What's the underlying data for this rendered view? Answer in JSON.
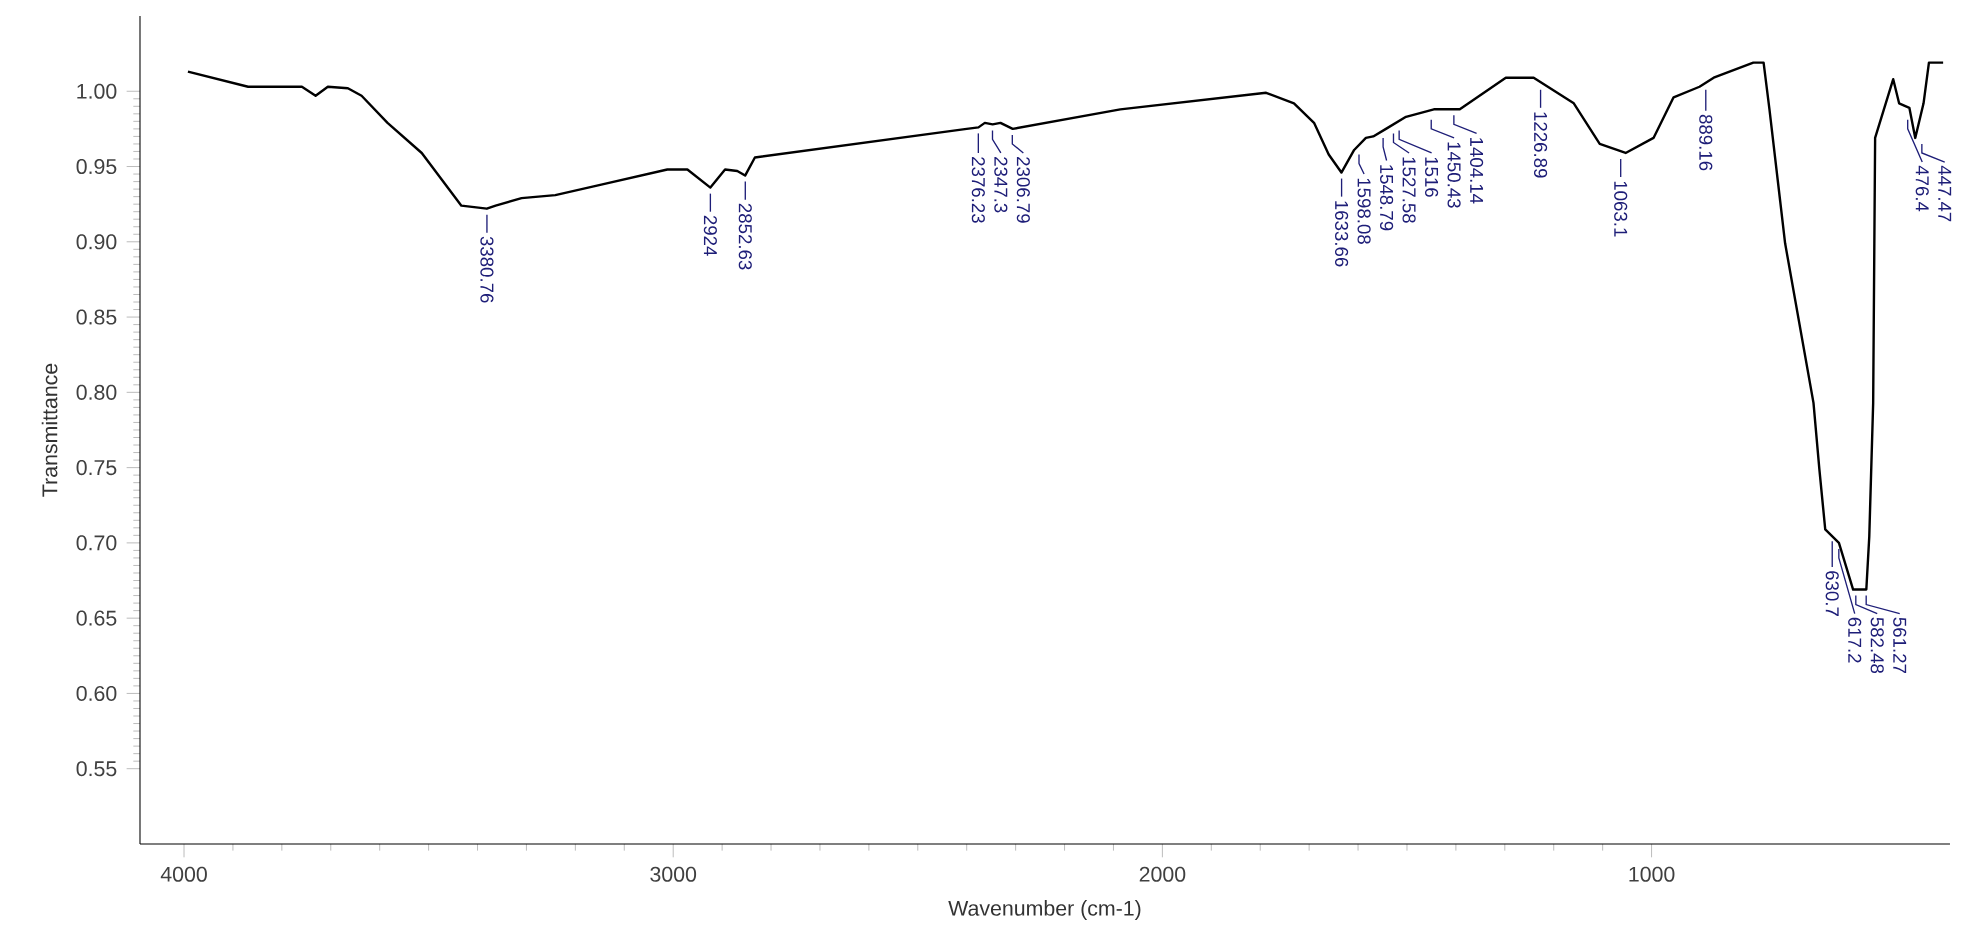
{
  "chart_data": {
    "type": "line",
    "xlabel": "Wavenumber (cm-1)",
    "ylabel": "Transmittance",
    "color": "#000000",
    "xlim": [
      4090,
      390
    ],
    "ylim": [
      0.5,
      1.05
    ],
    "xticks": [
      4000,
      3000,
      2000,
      1000
    ],
    "yticks": [
      {
        "value": 0.55,
        "label": "0.55"
      },
      {
        "value": 0.6,
        "label": "0.60"
      },
      {
        "value": 0.65,
        "label": "0.65"
      },
      {
        "value": 0.7,
        "label": "0.70"
      },
      {
        "value": 0.75,
        "label": "0.75"
      },
      {
        "value": 0.8,
        "label": "0.80"
      },
      {
        "value": 0.85,
        "label": "0.85"
      },
      {
        "value": 0.9,
        "label": "0.90"
      },
      {
        "value": 0.95,
        "label": "0.95"
      },
      {
        "value": 1.0,
        "label": "1.00"
      }
    ],
    "x": [
      3992,
      3869,
      3759,
      3731,
      3706,
      3665,
      3637,
      3584,
      3514,
      3433,
      3381,
      3363,
      3310,
      3241,
      3147,
      3012,
      2971,
      2924,
      2894,
      2869,
      2853,
      2833,
      2400,
      2376,
      2363,
      2347,
      2331,
      2306,
      2086,
      1788,
      1731,
      1690,
      1660,
      1634,
      1608,
      1584,
      1569,
      1543,
      1502,
      1445,
      1392,
      1298,
      1241,
      1159,
      1106,
      1053,
      996,
      955,
      902,
      873,
      792,
      771,
      759,
      727,
      669,
      657,
      645,
      617,
      588,
      561,
      555,
      547,
      543,
      506,
      494,
      473,
      461,
      444,
      433,
      404
    ],
    "values": [
      1.013,
      1.003,
      1.003,
      0.997,
      1.003,
      1.002,
      0.997,
      0.979,
      0.959,
      0.924,
      0.922,
      0.924,
      0.929,
      0.931,
      0.938,
      0.948,
      0.948,
      0.936,
      0.948,
      0.947,
      0.944,
      0.956,
      0.975,
      0.976,
      0.979,
      0.978,
      0.979,
      0.975,
      0.988,
      0.999,
      0.992,
      0.979,
      0.958,
      0.946,
      0.961,
      0.969,
      0.97,
      0.975,
      0.983,
      0.988,
      0.988,
      1.009,
      1.009,
      0.992,
      0.965,
      0.959,
      0.969,
      0.996,
      1.003,
      1.009,
      1.019,
      1.019,
      0.988,
      0.899,
      0.793,
      0.749,
      0.709,
      0.7,
      0.669,
      0.669,
      0.704,
      0.793,
      0.969,
      1.008,
      0.992,
      0.989,
      0.969,
      0.992,
      1.019,
      1.019
    ],
    "annotations": [
      {
        "text": "3380.76",
        "x": 3380.76,
        "y": 0.922
      },
      {
        "text": "2924",
        "x": 2924,
        "y": 0.936
      },
      {
        "text": "2852.63",
        "x": 2852.63,
        "y": 0.944
      },
      {
        "text": "2376.23",
        "x": 2376.23,
        "y": 0.976
      },
      {
        "text": "2347.3",
        "x": 2347.3,
        "y": 0.978
      },
      {
        "text": "2306.79",
        "x": 2306.79,
        "y": 0.975
      },
      {
        "text": "1633.66",
        "x": 1633.66,
        "y": 0.946
      },
      {
        "text": "1598.08",
        "x": 1598.08,
        "y": 0.962
      },
      {
        "text": "1548.79",
        "x": 1548.79,
        "y": 0.973
      },
      {
        "text": "1527.58",
        "x": 1527.58,
        "y": 0.976
      },
      {
        "text": "1516",
        "x": 1516,
        "y": 0.978
      },
      {
        "text": "1450.43",
        "x": 1450.43,
        "y": 0.985
      },
      {
        "text": "1404.14",
        "x": 1404.14,
        "y": 0.988
      },
      {
        "text": "1226.89",
        "x": 1226.89,
        "y": 1.005
      },
      {
        "text": "1063.1",
        "x": 1063.1,
        "y": 0.959
      },
      {
        "text": "889.16",
        "x": 889.16,
        "y": 1.005
      },
      {
        "text": "630.7",
        "x": 630.7,
        "y": 0.705
      },
      {
        "text": "617.2",
        "x": 617.2,
        "y": 0.7
      },
      {
        "text": "582.48",
        "x": 582.48,
        "y": 0.669
      },
      {
        "text": "561.27",
        "x": 561.27,
        "y": 0.669
      },
      {
        "text": "476.4",
        "x": 476.4,
        "y": 0.985
      },
      {
        "text": "447.47",
        "x": 447.47,
        "y": 0.969
      }
    ]
  }
}
